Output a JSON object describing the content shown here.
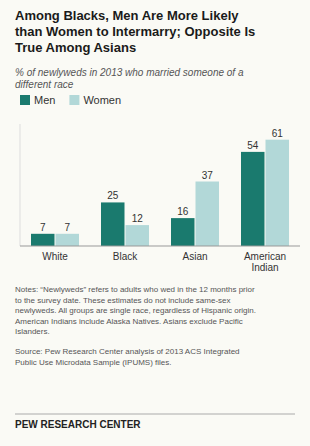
{
  "chart_data": {
    "type": "bar",
    "title": "Among Blacks, Men Are More Likely\nthan Women to Intermarry; Opposite Is\nTrue Among Asians",
    "subtitle": "% of newlyweds in 2013 who married someone of a\ndifferent race",
    "categories": [
      "White",
      "Black",
      "Asian",
      "American\nIndian"
    ],
    "series": [
      {
        "name": "Men",
        "color": "#1a7a6e",
        "values": [
          7,
          25,
          16,
          54
        ]
      },
      {
        "name": "Women",
        "color": "#b2d8d8",
        "values": [
          7,
          12,
          37,
          61
        ]
      }
    ],
    "ylim": [
      0,
      70
    ],
    "tick_labels": "x",
    "grid": false,
    "legend": "upper left",
    "data_labels": true,
    "annotations": [
      "Notes: “Newlyweds” refers to adults who wed in the 12 months prior\nto the survey date. These estimates do not include same-sex\nnewlyweds. All groups are single race, regardless of Hispanic origin.\nAmerican Indians include Alaska Natives. Asians exclude Pacific\nIslanders.",
      "Source: Pew Research Center analysis of 2013 ACS Integrated\nPublic Use Microdata Sample (IPUMS) files.",
      "PEW RESEARCH CENTER"
    ]
  }
}
